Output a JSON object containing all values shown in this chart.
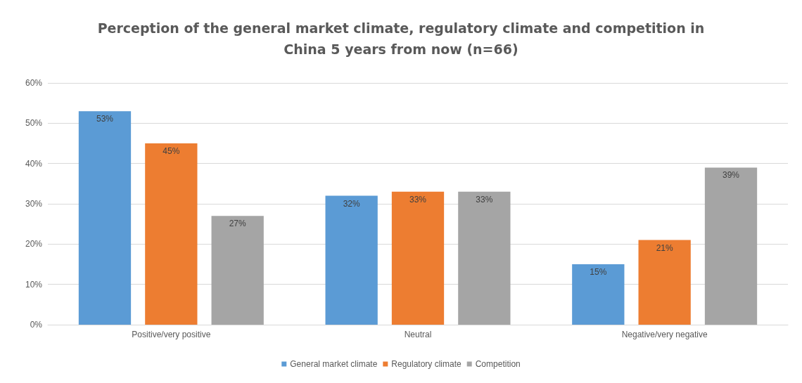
{
  "chart_data": {
    "type": "bar",
    "title": "Perception of the general market climate, regulatory climate and competition in\nChina 5 years from now (n=66)",
    "categories": [
      "Positive/very positive",
      "Neutral",
      "Negative/very negative"
    ],
    "series": [
      {
        "name": "General market climate",
        "color": "#5b9bd5",
        "values": [
          53,
          32,
          15
        ],
        "value_labels": [
          "53%",
          "32%",
          "15%"
        ]
      },
      {
        "name": "Regulatory climate",
        "color": "#ed7d31",
        "values": [
          45,
          33,
          21
        ],
        "value_labels": [
          "45%",
          "33%",
          "21%"
        ]
      },
      {
        "name": "Competition",
        "color": "#a5a5a5",
        "values": [
          27,
          33,
          39
        ],
        "value_labels": [
          "27%",
          "33%",
          "39%"
        ]
      }
    ],
    "ylim": [
      0,
      60
    ],
    "yticks": [
      {
        "value": 0,
        "label": "0%"
      },
      {
        "value": 10,
        "label": "10%"
      },
      {
        "value": 20,
        "label": "20%"
      },
      {
        "value": 30,
        "label": "30%"
      },
      {
        "value": 40,
        "label": "40%"
      },
      {
        "value": 50,
        "label": "50%"
      },
      {
        "value": 60,
        "label": "60%"
      }
    ],
    "grid": "y",
    "legend": "bottom"
  }
}
